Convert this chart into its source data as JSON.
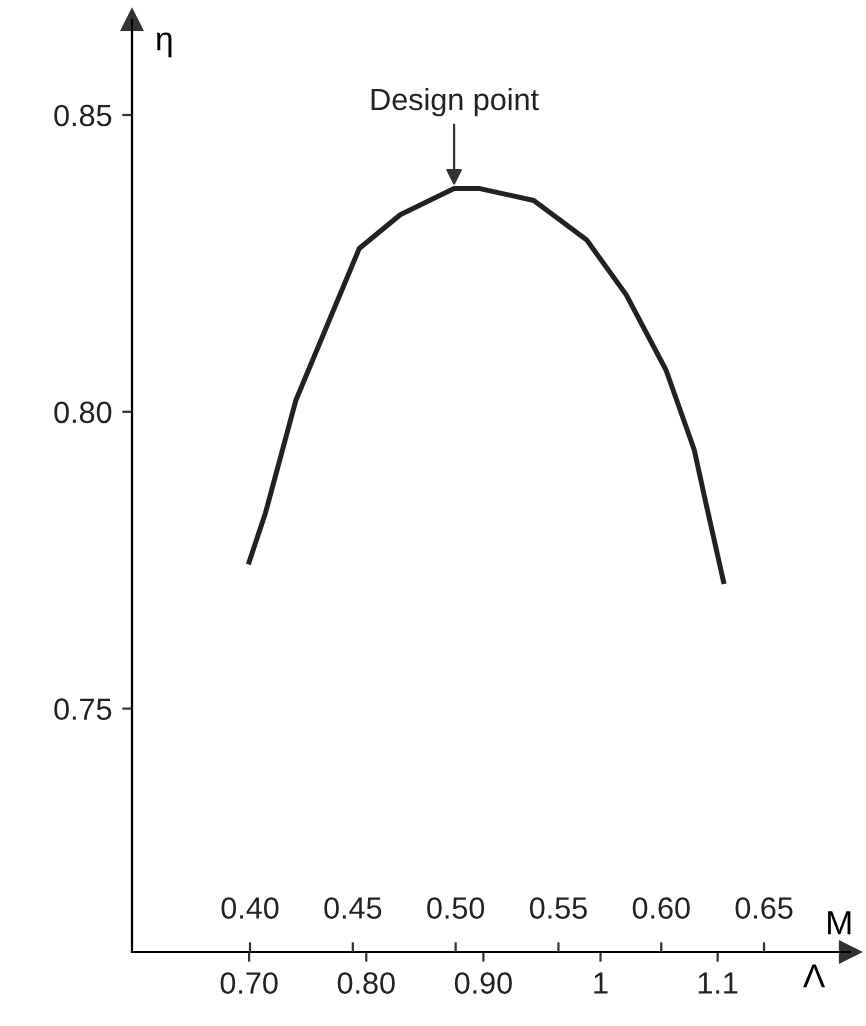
{
  "chart_data": {
    "type": "line",
    "xlabel": "Λ",
    "ylabel": "η",
    "x2label": "M",
    "x": [
      0.7,
      0.714,
      0.74,
      0.794,
      0.829,
      0.875,
      0.897,
      0.943,
      0.988,
      1.022,
      1.056,
      1.08,
      1.09,
      1.105
    ],
    "series": [
      {
        "color": "#222222",
        "values": [
          0.7747,
          0.783,
          0.802,
          0.8275,
          0.8332,
          0.8376,
          0.8376,
          0.8356,
          0.829,
          0.8197,
          0.807,
          0.7936,
          0.7846,
          0.7714
        ]
      }
    ],
    "xlim": [
      0.6,
      1.213
    ],
    "ylim": [
      0.709,
      0.866
    ],
    "xticks": [
      {
        "value": 0.7,
        "label": "0.70"
      },
      {
        "value": 0.8,
        "label": "0.80"
      },
      {
        "value": 0.9,
        "label": "0.90"
      },
      1,
      1.1
    ],
    "yticks": [
      0.75,
      {
        "value": 0.8,
        "label": "0.80"
      },
      0.85
    ],
    "x2lim": [
      0.3426,
      0.6918
    ],
    "x2ticks": [
      {
        "value": 0.4,
        "label": "0.40"
      },
      0.45,
      {
        "value": 0.5,
        "label": "0.50"
      },
      0.55,
      {
        "value": 0.6,
        "label": "0.60"
      },
      0.65
    ],
    "annotations": [
      {
        "text": "Design point",
        "x": 0.875,
        "y": 0.8376
      }
    ],
    "grid": false,
    "marker": "none",
    "line_style": "solid"
  }
}
